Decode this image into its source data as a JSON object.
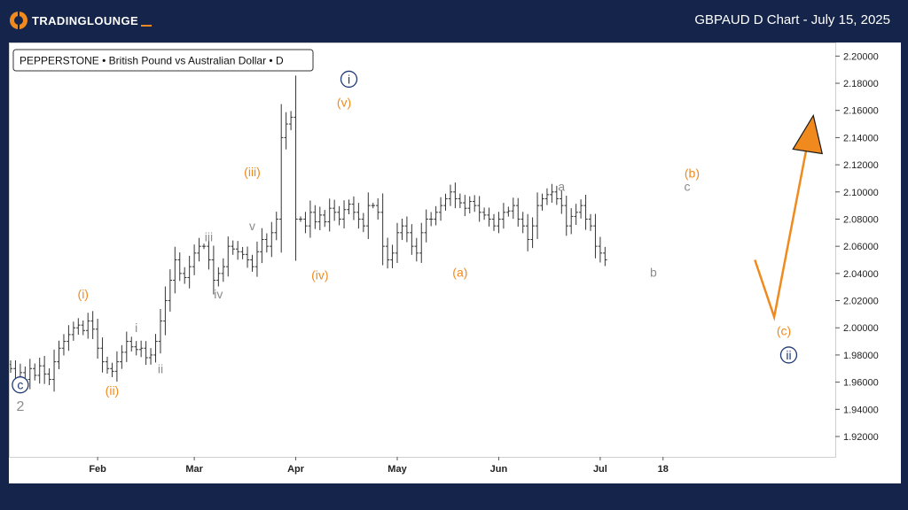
{
  "header": {
    "logo_text": "TRADINGLOUNGE",
    "chart_title": "GBPAUD D Chart - July 15, 2025"
  },
  "colors": {
    "background": "#14244a",
    "accent": "#f08a1e",
    "navy_label": "#1e3a73",
    "gray_label": "#8c8c8c",
    "bar": "#333333"
  },
  "icons": {
    "logo": "trading-lounge-logo-icon",
    "target": "target-arrow-icon"
  },
  "chart_data": {
    "type": "ohlc",
    "legend": "PEPPERSTONE • British Pound vs Australian Dollar • D",
    "ylim": [
      1.905,
      2.21
    ],
    "y_ticks": [
      "2.20000",
      "2.18000",
      "2.16000",
      "2.14000",
      "2.12000",
      "2.10000",
      "2.08000",
      "2.06000",
      "2.04000",
      "2.02000",
      "2.00000",
      "1.98000",
      "1.96000",
      "1.94000",
      "1.92000"
    ],
    "x_ticks": [
      {
        "label": "Feb",
        "index": 18
      },
      {
        "label": "Mar",
        "index": 38
      },
      {
        "label": "Apr",
        "index": 59
      },
      {
        "label": "May",
        "index": 80
      },
      {
        "label": "Jun",
        "index": 101
      },
      {
        "label": "Jul",
        "index": 122
      },
      {
        "label": "18",
        "index": 135
      }
    ],
    "closes": [
      1.97,
      1.963,
      1.967,
      1.962,
      1.97,
      1.965,
      1.972,
      1.966,
      1.962,
      1.975,
      1.985,
      1.99,
      1.995,
      2.0,
      2.002,
      1.998,
      2.005,
      1.999,
      1.985,
      1.975,
      1.97,
      1.968,
      1.975,
      1.982,
      1.99,
      1.986,
      1.984,
      1.985,
      1.978,
      1.98,
      1.99,
      2.005,
      2.02,
      2.035,
      2.05,
      2.04,
      2.037,
      2.045,
      2.055,
      2.06,
      2.06,
      2.05,
      2.035,
      2.04,
      2.045,
      2.06,
      2.058,
      2.056,
      2.054,
      2.05,
      2.045,
      2.056,
      2.065,
      2.06,
      2.07,
      2.08,
      2.14,
      2.15,
      2.155,
      2.08,
      2.08,
      2.075,
      2.085,
      2.078,
      2.083,
      2.078,
      2.088,
      2.085,
      2.08,
      2.087,
      2.091,
      2.085,
      2.08,
      2.075,
      2.09,
      2.09,
      2.085,
      2.06,
      2.05,
      2.055,
      2.07,
      2.075,
      2.07,
      2.06,
      2.055,
      2.07,
      2.08,
      2.08,
      2.085,
      2.09,
      2.095,
      2.1,
      2.095,
      2.092,
      2.088,
      2.093,
      2.09,
      2.085,
      2.083,
      2.08,
      2.075,
      2.08,
      2.085,
      2.086,
      2.09,
      2.08,
      2.075,
      2.065,
      2.075,
      2.09,
      2.095,
      2.098,
      2.1,
      2.095,
      2.09,
      2.075,
      2.082,
      2.085,
      2.09,
      2.08,
      2.075,
      2.06,
      2.055,
      2.05
    ],
    "wave_labels": [
      {
        "text": "c",
        "style": "circle",
        "color": "navy",
        "index": 2,
        "price": 1.958
      },
      {
        "text": "2",
        "style": "plain",
        "color": "gray",
        "index": 2,
        "price": 1.942
      },
      {
        "text": "(i)",
        "style": "plain",
        "color": "orange",
        "index": 15,
        "price": 2.025
      },
      {
        "text": "(ii)",
        "style": "plain",
        "color": "orange",
        "index": 21,
        "price": 1.954
      },
      {
        "text": "i",
        "style": "plain",
        "color": "gray",
        "index": 26,
        "price": 2.0
      },
      {
        "text": "ii",
        "style": "plain",
        "color": "gray",
        "index": 31,
        "price": 1.97
      },
      {
        "text": "iii",
        "style": "plain",
        "color": "gray",
        "index": 41,
        "price": 2.067
      },
      {
        "text": "iv",
        "style": "plain",
        "color": "gray",
        "index": 43,
        "price": 2.025
      },
      {
        "text": "(iii)",
        "style": "plain",
        "color": "orange",
        "index": 50,
        "price": 2.115
      },
      {
        "text": "v",
        "style": "plain",
        "color": "gray",
        "index": 50,
        "price": 2.075
      },
      {
        "text": "(iv)",
        "style": "plain",
        "color": "orange",
        "index": 64,
        "price": 2.039
      },
      {
        "text": "(v)",
        "style": "plain",
        "color": "orange",
        "index": 69,
        "price": 2.166
      },
      {
        "text": "i",
        "style": "circle",
        "color": "navy",
        "index": 70,
        "price": 2.183
      },
      {
        "text": "(a)",
        "style": "plain",
        "color": "orange",
        "index": 93,
        "price": 2.041
      },
      {
        "text": "a",
        "style": "plain",
        "color": "gray",
        "index": 114,
        "price": 2.104
      },
      {
        "text": "b",
        "style": "plain",
        "color": "gray",
        "index": 133,
        "price": 2.041
      },
      {
        "text": "c",
        "style": "plain",
        "color": "gray",
        "index": 140,
        "price": 2.104
      },
      {
        "text": "(b)",
        "style": "plain",
        "color": "orange",
        "index": 141,
        "price": 2.114
      },
      {
        "text": "(c)",
        "style": "plain",
        "color": "orange",
        "index": 160,
        "price": 1.998
      },
      {
        "text": "ii",
        "style": "circle",
        "color": "navy",
        "index": 161,
        "price": 1.98
      }
    ],
    "projection": [
      {
        "index": 154,
        "price": 2.05
      },
      {
        "index": 158,
        "price": 2.008
      },
      {
        "index": 165,
        "price": 2.138
      }
    ]
  },
  "legend_label": "PEPPERSTONE • British Pound vs Australian Dollar • D"
}
